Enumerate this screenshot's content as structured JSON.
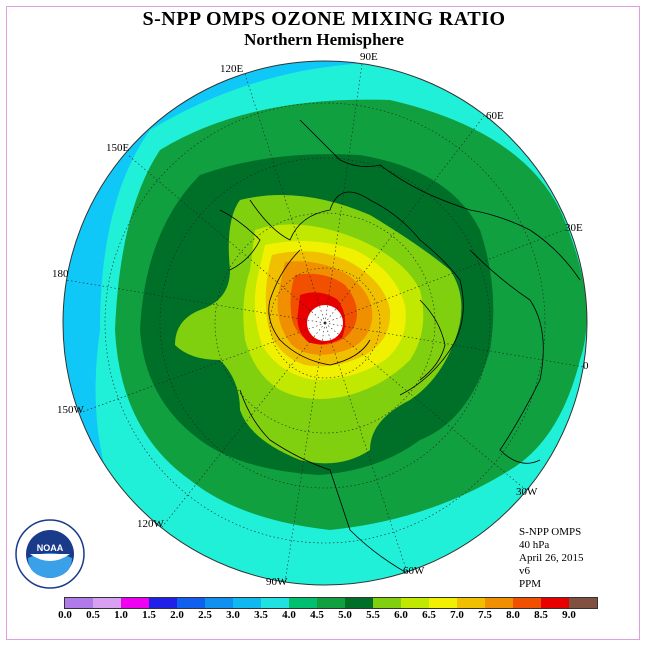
{
  "title": "S-NPP OMPS OZONE MIXING RATIO",
  "subtitle": "Northern Hemisphere",
  "longitude_labels": [
    "90E",
    "60E",
    "30E",
    "0",
    "30W",
    "60W",
    "90W",
    "120W",
    "150W",
    "180",
    "150E",
    "120E"
  ],
  "info": {
    "instrument": "S-NPP OMPS",
    "level": "40 hPa",
    "date": "April 26, 2015",
    "version": "v6",
    "units": "PPM"
  },
  "logo_text": "NOAA",
  "colorbar": {
    "ticks": [
      "0.0",
      "0.5",
      "1.0",
      "1.5",
      "2.0",
      "2.5",
      "3.0",
      "3.5",
      "4.0",
      "4.5",
      "5.0",
      "5.5",
      "6.0",
      "6.5",
      "7.0",
      "7.5",
      "8.0",
      "8.5",
      "9.0"
    ],
    "colors": [
      "#b07be8",
      "#d8a0f0",
      "#f000f0",
      "#2020e8",
      "#1060f0",
      "#1090f0",
      "#10b8f0",
      "#20e0e0",
      "#00c070",
      "#10a040",
      "#007028",
      "#80d010",
      "#c0e800",
      "#f0f000",
      "#f0c000",
      "#f09000",
      "#f05000",
      "#e80000",
      "#805040"
    ]
  },
  "colors": {
    "outer_ring": "#10c8f8",
    "band_35_40": "#20f0d8",
    "band_40_45": "#10a040",
    "band_45_50": "#007028",
    "band_50_55": "#80d010",
    "band_55_60": "#c0e800",
    "band_60_65": "#f0f000",
    "band_65_70": "#f0c000",
    "band_70_75": "#f09000",
    "band_75_80": "#f05000",
    "band_80_85": "#e80000"
  }
}
